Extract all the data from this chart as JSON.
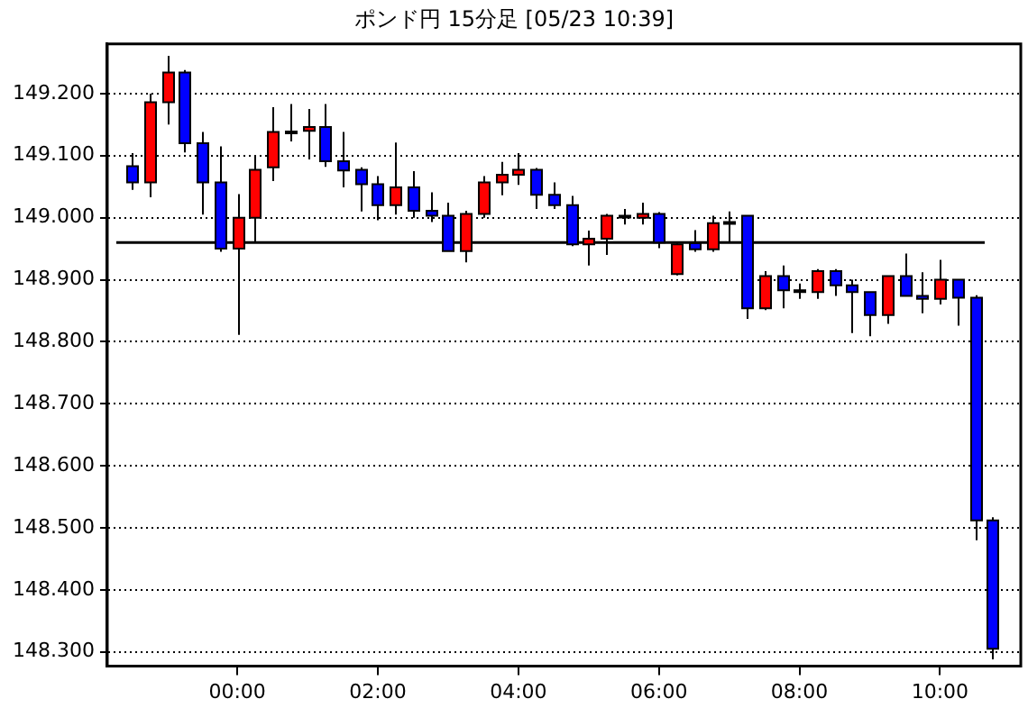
{
  "chart_data": {
    "type": "candlestick",
    "title": "ポンド円 15分足 [05/23 10:39]",
    "x": [
      -1.5,
      -1.25,
      -1,
      -0.75,
      -0.5,
      -0.25,
      0,
      0.25,
      0.5,
      0.75,
      1,
      1.25,
      1.5,
      1.75,
      2,
      2.25,
      2.5,
      2.75,
      3,
      3.25,
      3.5,
      3.75,
      4,
      4.25,
      4.5,
      4.75,
      5,
      5.25,
      5.5,
      5.75,
      6,
      6.25,
      6.5,
      6.75,
      7,
      7.25,
      7.5,
      7.75,
      8,
      8.25,
      8.5,
      8.75,
      9,
      9.25,
      9.5,
      9.75,
      10,
      10.25,
      10.5,
      10.75
    ],
    "ohlc": [
      [
        149.083,
        149.104,
        149.045,
        149.057
      ],
      [
        149.057,
        149.2,
        149.033,
        149.186
      ],
      [
        149.186,
        149.261,
        149.15,
        149.234
      ],
      [
        149.234,
        149.238,
        149.105,
        149.12
      ],
      [
        149.12,
        149.138,
        149.005,
        149.057
      ],
      [
        149.057,
        149.115,
        148.945,
        148.95
      ],
      [
        148.95,
        149.038,
        148.811,
        149.0
      ],
      [
        149.0,
        149.1,
        148.959,
        149.077
      ],
      [
        149.081,
        149.178,
        149.059,
        149.138
      ],
      [
        149.139,
        149.183,
        149.123,
        149.139
      ],
      [
        149.14,
        149.175,
        149.094,
        149.146
      ],
      [
        149.146,
        149.183,
        149.082,
        149.091
      ],
      [
        149.091,
        149.138,
        149.049,
        149.076
      ],
      [
        149.077,
        149.081,
        149.01,
        149.054
      ],
      [
        149.054,
        149.067,
        148.996,
        149.02
      ],
      [
        149.02,
        149.121,
        149.005,
        149.049
      ],
      [
        149.049,
        149.075,
        149.0,
        149.011
      ],
      [
        149.011,
        149.041,
        148.993,
        149.003
      ],
      [
        149.003,
        149.024,
        148.946,
        148.946
      ],
      [
        148.946,
        149.011,
        148.928,
        149.006
      ],
      [
        149.006,
        149.067,
        149.0,
        149.057
      ],
      [
        149.057,
        149.09,
        149.036,
        149.069
      ],
      [
        149.069,
        149.104,
        149.053,
        149.077
      ],
      [
        149.077,
        149.08,
        149.014,
        149.037
      ],
      [
        149.037,
        149.057,
        149.014,
        149.02
      ],
      [
        149.02,
        149.035,
        148.954,
        148.957
      ],
      [
        148.957,
        148.979,
        148.923,
        148.966
      ],
      [
        148.966,
        149.006,
        148.94,
        149.003
      ],
      [
        149.003,
        149.014,
        148.989,
        149.003
      ],
      [
        149.0,
        149.024,
        148.989,
        149.006
      ],
      [
        149.006,
        149.009,
        148.951,
        148.96
      ],
      [
        148.909,
        148.959,
        148.907,
        148.957
      ],
      [
        148.959,
        148.98,
        148.945,
        148.949
      ],
      [
        148.949,
        149.003,
        148.945,
        148.991
      ],
      [
        148.993,
        149.01,
        148.961,
        148.993
      ],
      [
        149.003,
        149.003,
        148.837,
        148.854
      ],
      [
        148.854,
        148.914,
        148.851,
        148.906
      ],
      [
        148.906,
        148.923,
        148.854,
        148.883
      ],
      [
        148.883,
        148.894,
        148.869,
        148.883
      ],
      [
        148.88,
        148.917,
        148.869,
        148.914
      ],
      [
        148.914,
        148.917,
        148.874,
        148.891
      ],
      [
        148.891,
        148.9,
        148.814,
        148.88
      ],
      [
        148.88,
        148.88,
        148.809,
        148.843
      ],
      [
        148.843,
        148.906,
        148.829,
        148.906
      ],
      [
        148.906,
        148.942,
        148.874,
        148.874
      ],
      [
        148.874,
        148.912,
        148.846,
        148.869
      ],
      [
        148.869,
        148.932,
        148.86,
        148.9
      ],
      [
        148.9,
        148.9,
        148.826,
        148.871
      ],
      [
        148.871,
        148.875,
        148.48,
        148.512
      ],
      [
        148.512,
        148.517,
        148.288,
        148.305
      ]
    ],
    "colors": [
      "#0000ff",
      "#ff0000",
      "#ff0000",
      "#0000ff",
      "#0000ff",
      "#0000ff",
      "#ff0000",
      "#ff0000",
      "#ff0000",
      "#000000",
      "#ff0000",
      "#0000ff",
      "#0000ff",
      "#0000ff",
      "#0000ff",
      "#ff0000",
      "#0000ff",
      "#0000ff",
      "#0000ff",
      "#ff0000",
      "#ff0000",
      "#ff0000",
      "#ff0000",
      "#0000ff",
      "#0000ff",
      "#0000ff",
      "#ff0000",
      "#ff0000",
      "#000000",
      "#ff0000",
      "#0000ff",
      "#ff0000",
      "#0000ff",
      "#ff0000",
      "#000000",
      "#0000ff",
      "#ff0000",
      "#0000ff",
      "#000000",
      "#ff0000",
      "#0000ff",
      "#0000ff",
      "#0000ff",
      "#ff0000",
      "#0000ff",
      "#0000ff",
      "#ff0000",
      "#0000ff",
      "#0000ff",
      "#0000ff"
    ],
    "xlim": [
      -1.85,
      11.15
    ],
    "xticks": [
      {
        "value": 0,
        "label": "00:00"
      },
      {
        "value": 2,
        "label": "02:00"
      },
      {
        "value": 4,
        "label": "04:00"
      },
      {
        "value": 6,
        "label": "06:00"
      },
      {
        "value": 8,
        "label": "08:00"
      },
      {
        "value": 10,
        "label": "10:00"
      }
    ],
    "ylim": [
      148.277,
      149.28
    ],
    "yticks": [
      {
        "value": 148.3,
        "label": "148.300"
      },
      {
        "value": 148.4,
        "label": "148.400"
      },
      {
        "value": 148.5,
        "label": "148.500"
      },
      {
        "value": 148.6,
        "label": "148.600"
      },
      {
        "value": 148.7,
        "label": "148.700"
      },
      {
        "value": 148.8,
        "label": "148.800"
      },
      {
        "value": 148.9,
        "label": "148.900"
      },
      {
        "value": 149.0,
        "label": "149.000"
      },
      {
        "value": 149.1,
        "label": "149.100"
      },
      {
        "value": 149.2,
        "label": "149.200"
      }
    ],
    "ref_lines": [
      {
        "axis": "y",
        "value": 148.96,
        "color": "#000000"
      }
    ],
    "grid": "y",
    "legend": false
  }
}
